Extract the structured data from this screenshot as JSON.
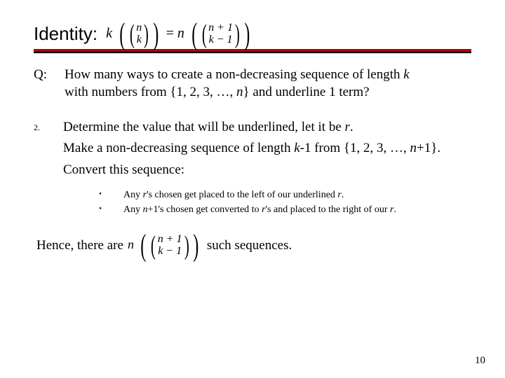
{
  "title": "Identity:",
  "formula_top": {
    "lhs_coef": "k",
    "lhs_top": "n",
    "lhs_bot": "k",
    "eq": "=",
    "rhs_coef": "n",
    "rhs_top": "n + 1",
    "rhs_bot": "k − 1"
  },
  "question": {
    "label": "Q:",
    "text_1": "How many ways to create a non-decreasing sequence of length ",
    "k": "k",
    "text_2": "with numbers from {1, 2, 3, …, ",
    "n": "n",
    "text_3": "} and underline 1 term?"
  },
  "step": {
    "num": "2.",
    "line1_a": "Determine the value that will be underlined, let it be ",
    "r": "r",
    "line1_b": ".",
    "line2_a": "Make a non-decreasing sequence of length ",
    "k": "k",
    "line2_b": "-1 from {1, 2, 3, …, ",
    "n": "n",
    "line2_c": "+1}.",
    "line3": "Convert this sequence:"
  },
  "sub": {
    "a_1": "Any ",
    "a_r": "r",
    "a_2": "'s chosen get placed to the left of our underlined ",
    "a_r2": "r",
    "a_3": ".",
    "b_1": "Any ",
    "b_n": "n",
    "b_2": "+1's chosen get converted to ",
    "b_r": "r",
    "b_3": "'s and placed to the right of our ",
    "b_r2": "r",
    "b_4": "."
  },
  "hence": {
    "pre": "Hence, there are ",
    "coef": "n",
    "top": "n + 1",
    "bot": "k − 1",
    "post": " such sequences."
  },
  "pagenum": "10",
  "colors": {
    "underline": "#b00000",
    "text": "#000000",
    "bg": "#ffffff"
  }
}
